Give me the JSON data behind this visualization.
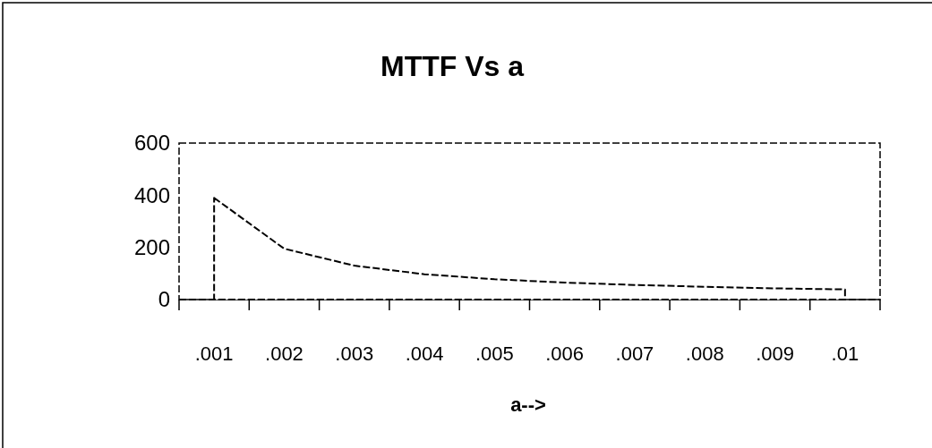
{
  "chart_data": {
    "type": "area",
    "title": "MTTF Vs a",
    "xlabel": "a-->",
    "categories": [
      ".001",
      ".002",
      ".003",
      ".004",
      ".005",
      ".006",
      ".007",
      ".008",
      ".009",
      ".01"
    ],
    "series": [
      {
        "color": "#000000",
        "values": [
          390,
          195,
          130,
          97,
          78,
          65,
          56,
          49,
          43,
          39
        ]
      }
    ],
    "ylim": [
      0,
      600
    ],
    "yticks": [
      0,
      200,
      400,
      600
    ],
    "grid": false,
    "line_style": "dashed"
  }
}
